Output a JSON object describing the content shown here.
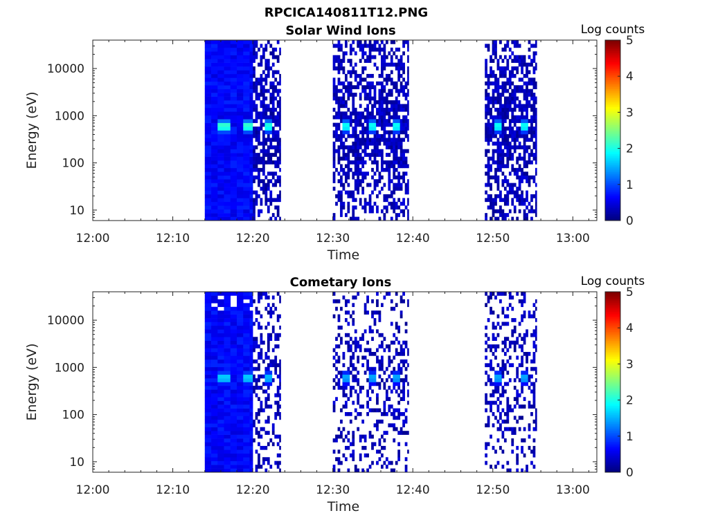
{
  "figure_title": "RPCICA140811T12.PNG",
  "chart_data": [
    {
      "type": "heatmap",
      "title": "Solar Wind Ions",
      "xlabel": "Time",
      "ylabel": "Energy (eV)",
      "x_ticks": [
        "12:00",
        "12:10",
        "12:20",
        "12:30",
        "12:40",
        "12:50",
        "13:00"
      ],
      "y_ticks": [
        "10",
        "100",
        "1000",
        "10000"
      ],
      "y_scale": "log",
      "ylim": [
        6,
        40000
      ],
      "xlim": [
        "12:00",
        "13:03"
      ],
      "colorbar": {
        "label": "Log counts",
        "range": [
          0,
          5
        ],
        "ticks": [
          "0",
          "1",
          "2",
          "3",
          "4",
          "5"
        ]
      },
      "data_blocks": [
        {
          "start": "12:14",
          "end": "12:20",
          "intensity": "dense",
          "peak_log_counts": 2.2,
          "peak_energy_ev": 600
        },
        {
          "start": "12:20",
          "end": "12:23.5",
          "intensity": "sparse",
          "peak_log_counts": 2.1,
          "peak_energy_ev": 600
        },
        {
          "start": "12:30",
          "end": "12:39.5",
          "intensity": "sparse",
          "peak_log_counts": 2.0,
          "peak_energy_ev": 600
        },
        {
          "start": "12:49",
          "end": "12:55.5",
          "intensity": "sparse",
          "peak_log_counts": 2.0,
          "peak_energy_ev": 600
        }
      ],
      "peaks": [
        {
          "time": "12:16.5",
          "energy_ev": 600,
          "log_counts": 2.2
        },
        {
          "time": "12:19.5",
          "energy_ev": 600,
          "log_counts": 2.2
        },
        {
          "time": "12:22",
          "energy_ev": 600,
          "log_counts": 2.1
        },
        {
          "time": "12:31.5",
          "energy_ev": 600,
          "log_counts": 2.0
        },
        {
          "time": "12:35",
          "energy_ev": 600,
          "log_counts": 2.0
        },
        {
          "time": "12:38",
          "energy_ev": 600,
          "log_counts": 2.0
        },
        {
          "time": "12:50.5",
          "energy_ev": 600,
          "log_counts": 2.0
        },
        {
          "time": "12:54",
          "energy_ev": 600,
          "log_counts": 2.0
        }
      ]
    },
    {
      "type": "heatmap",
      "title": "Cometary Ions",
      "xlabel": "Time",
      "ylabel": "Energy (eV)",
      "x_ticks": [
        "12:00",
        "12:10",
        "12:20",
        "12:30",
        "12:40",
        "12:50",
        "13:00"
      ],
      "y_ticks": [
        "10",
        "100",
        "1000",
        "10000"
      ],
      "y_scale": "log",
      "ylim": [
        6,
        40000
      ],
      "xlim": [
        "12:00",
        "13:03"
      ],
      "colorbar": {
        "label": "Log counts",
        "range": [
          0,
          5
        ],
        "ticks": [
          "0",
          "1",
          "2",
          "3",
          "4",
          "5"
        ]
      },
      "data_blocks": [
        {
          "start": "12:14",
          "end": "12:20",
          "intensity": "dense",
          "peak_log_counts": 1.7,
          "peak_energy_ev": 600
        },
        {
          "start": "12:20",
          "end": "12:23.5",
          "intensity": "sparse",
          "peak_log_counts": 1.6,
          "peak_energy_ev": 600
        },
        {
          "start": "12:30",
          "end": "12:39.5",
          "intensity": "sparse",
          "peak_log_counts": 1.5,
          "peak_energy_ev": 600
        },
        {
          "start": "12:49",
          "end": "12:55.5",
          "intensity": "sparse",
          "peak_log_counts": 1.5,
          "peak_energy_ev": 600
        }
      ],
      "peaks": [
        {
          "time": "12:16.5",
          "energy_ev": 600,
          "log_counts": 1.7
        },
        {
          "time": "12:19.5",
          "energy_ev": 600,
          "log_counts": 1.7
        },
        {
          "time": "12:22",
          "energy_ev": 600,
          "log_counts": 1.6
        },
        {
          "time": "12:31.5",
          "energy_ev": 600,
          "log_counts": 1.5
        },
        {
          "time": "12:35",
          "energy_ev": 600,
          "log_counts": 1.5
        },
        {
          "time": "12:38",
          "energy_ev": 600,
          "log_counts": 1.5
        },
        {
          "time": "12:50.5",
          "energy_ev": 600,
          "log_counts": 1.5
        },
        {
          "time": "12:54",
          "energy_ev": 600,
          "log_counts": 1.5
        }
      ]
    }
  ]
}
